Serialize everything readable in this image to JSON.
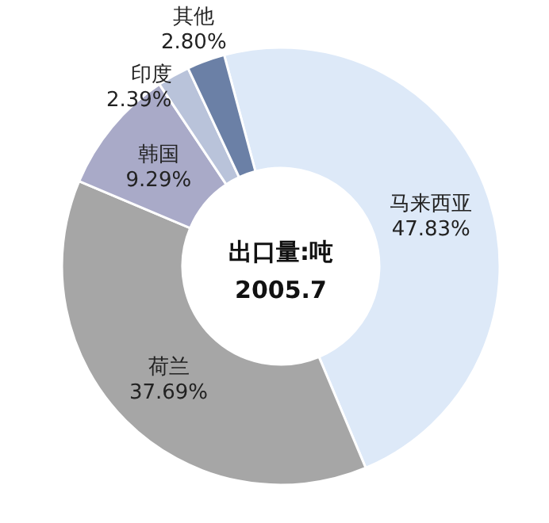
{
  "chart_data": {
    "type": "donut",
    "title": "出口量:吨",
    "subtitle": "2005.7",
    "categories": [
      "马来西亚",
      "荷兰",
      "韩国",
      "印度",
      "其他"
    ],
    "values": [
      47.83,
      37.69,
      9.29,
      2.39,
      2.8
    ],
    "colors": [
      "#dde9f8",
      "#a6a6a6",
      "#a9aac8",
      "#b9c3da",
      "#6b80a6"
    ],
    "value_labels": [
      "47.83%",
      "37.69%",
      "9.29%",
      "2.39%",
      "2.80%"
    ],
    "legend": false
  }
}
